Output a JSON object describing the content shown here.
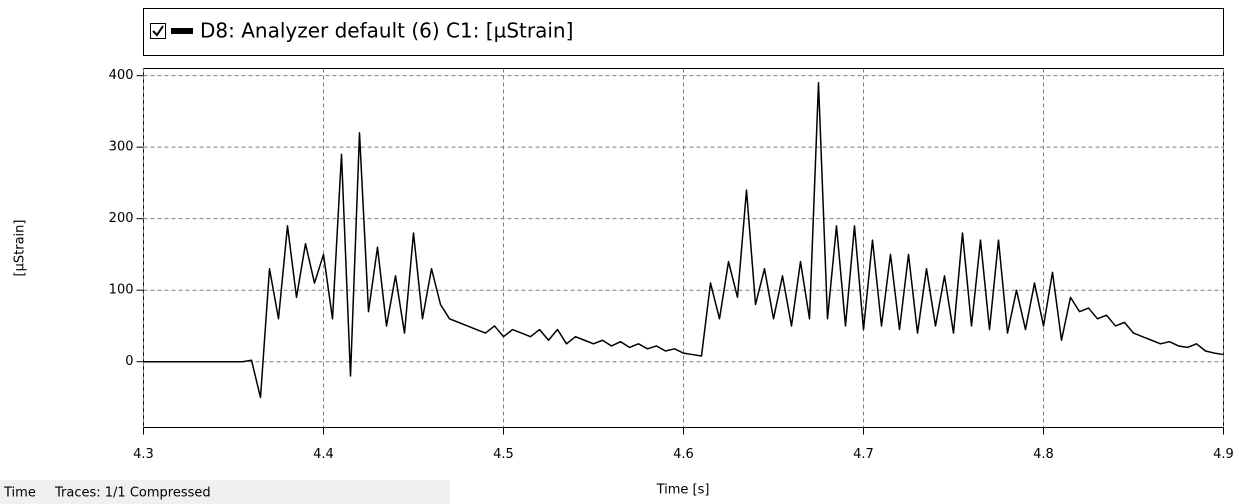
{
  "chart_data": {
    "type": "line",
    "x_label": "Time [s]",
    "y_label": "[µStrain]",
    "x": [
      4.3,
      4.305,
      4.31,
      4.315,
      4.32,
      4.325,
      4.33,
      4.335,
      4.34,
      4.345,
      4.35,
      4.355,
      4.36,
      4.365,
      4.37,
      4.375,
      4.38,
      4.385,
      4.39,
      4.395,
      4.4,
      4.405,
      4.41,
      4.415,
      4.42,
      4.425,
      4.43,
      4.435,
      4.44,
      4.445,
      4.45,
      4.455,
      4.46,
      4.465,
      4.47,
      4.475,
      4.48,
      4.485,
      4.49,
      4.495,
      4.5,
      4.505,
      4.51,
      4.515,
      4.52,
      4.525,
      4.53,
      4.535,
      4.54,
      4.545,
      4.55,
      4.555,
      4.56,
      4.565,
      4.57,
      4.575,
      4.58,
      4.585,
      4.59,
      4.595,
      4.6,
      4.605,
      4.61,
      4.615,
      4.62,
      4.625,
      4.63,
      4.635,
      4.64,
      4.645,
      4.65,
      4.655,
      4.66,
      4.665,
      4.67,
      4.675,
      4.68,
      4.685,
      4.69,
      4.695,
      4.7,
      4.705,
      4.71,
      4.715,
      4.72,
      4.725,
      4.73,
      4.735,
      4.74,
      4.745,
      4.75,
      4.755,
      4.76,
      4.765,
      4.77,
      4.775,
      4.78,
      4.785,
      4.79,
      4.795,
      4.8,
      4.805,
      4.81,
      4.815,
      4.82,
      4.825,
      4.83,
      4.835,
      4.84,
      4.845,
      4.85,
      4.855,
      4.86,
      4.865,
      4.87,
      4.875,
      4.88,
      4.885,
      4.89,
      4.895,
      4.9
    ],
    "series": [
      {
        "name": "D8: Analyzer default (6)  C1:  [µStrain]",
        "color": "#000000",
        "values": [
          0,
          0,
          0,
          0,
          0,
          0,
          0,
          0,
          0,
          0,
          0,
          0,
          2,
          -50,
          130,
          60,
          190,
          90,
          165,
          110,
          150,
          60,
          290,
          -20,
          320,
          70,
          160,
          50,
          120,
          40,
          180,
          60,
          130,
          80,
          60,
          55,
          50,
          45,
          40,
          50,
          35,
          45,
          40,
          35,
          45,
          30,
          45,
          25,
          35,
          30,
          25,
          30,
          22,
          28,
          20,
          25,
          18,
          22,
          15,
          18,
          12,
          10,
          8,
          110,
          60,
          140,
          90,
          240,
          80,
          130,
          60,
          120,
          50,
          140,
          60,
          390,
          60,
          190,
          50,
          190,
          45,
          170,
          50,
          150,
          45,
          150,
          40,
          130,
          50,
          120,
          40,
          180,
          50,
          170,
          45,
          170,
          40,
          100,
          45,
          110,
          50,
          125,
          30,
          90,
          70,
          75,
          60,
          65,
          50,
          55,
          40,
          35,
          30,
          25,
          28,
          22,
          20,
          25,
          15,
          12,
          10
        ]
      }
    ],
    "xlim": [
      4.3,
      4.9
    ],
    "xticks": [
      4.3,
      4.4,
      4.5,
      4.6,
      4.7,
      4.8,
      4.9
    ],
    "ylim": [
      -92,
      410
    ],
    "yticks": [
      0,
      100,
      200,
      300,
      400
    ],
    "grid": true
  },
  "status_bar": {
    "mode": "Time",
    "info": "Traces: 1/1  Compressed"
  }
}
